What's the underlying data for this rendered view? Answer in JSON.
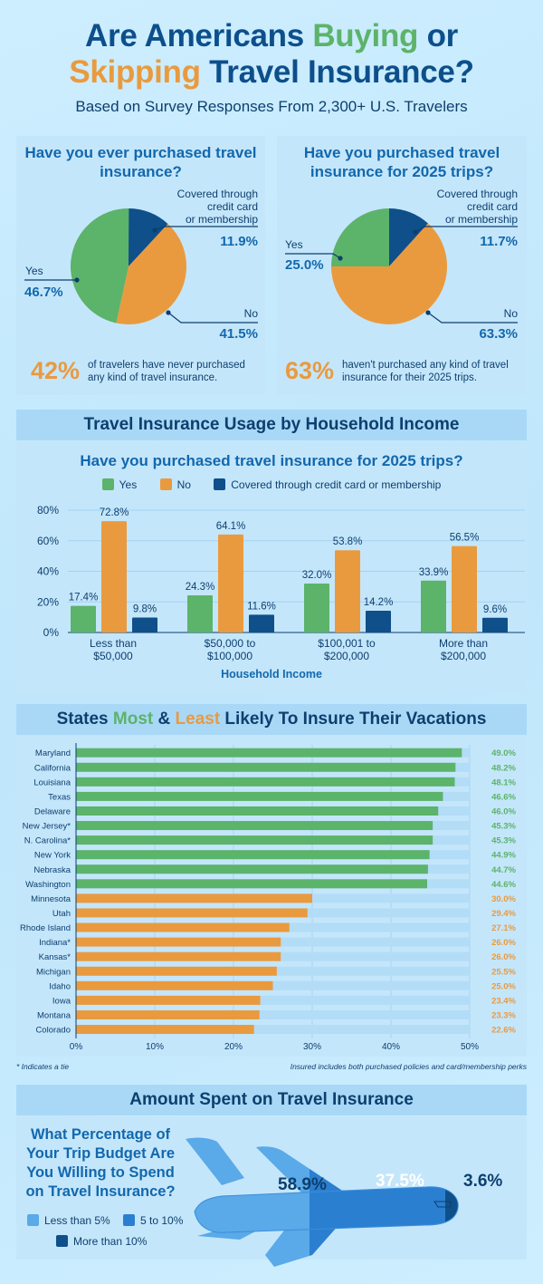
{
  "header": {
    "title_line1_a": "Are Americans ",
    "title_line1_b": "Buying",
    "title_line1_c": " or",
    "title_line2_a": "Skipping",
    "title_line2_b": " Travel Insurance?",
    "subtitle": "Based on Survey Responses From 2,300+ U.S. Travelers"
  },
  "colors": {
    "yes": "#5cb36a",
    "no": "#ea9a3e",
    "covered": "#0f4f8a",
    "navy": "#0d4f8b"
  },
  "chart_data": [
    {
      "type": "pie",
      "title": "Have you ever purchased travel insurance?",
      "slices": [
        {
          "label": "Covered through credit card or membership",
          "value": 11.9,
          "text": "11.9%"
        },
        {
          "label": "No",
          "value": 41.5,
          "text": "41.5%"
        },
        {
          "label": "Yes",
          "value": 46.7,
          "text": "46.7%"
        }
      ],
      "callout": {
        "big": "42%",
        "text": "of travelers have never purchased any kind of travel insurance."
      }
    },
    {
      "type": "pie",
      "title": "Have you purchased travel insurance for 2025 trips?",
      "slices": [
        {
          "label": "Covered through credit card or membership",
          "value": 11.7,
          "text": "11.7%"
        },
        {
          "label": "No",
          "value": 63.3,
          "text": "63.3%"
        },
        {
          "label": "Yes",
          "value": 25.0,
          "text": "25.0%"
        }
      ],
      "callout": {
        "big": "63%",
        "text": "haven't purchased any kind of travel insurance for their 2025 trips."
      }
    },
    {
      "type": "bar",
      "section": "Travel Insurance Usage by Household Income",
      "title": "Have you purchased travel insurance for 2025 trips?",
      "legend": [
        "Yes",
        "No",
        "Covered through credit card or membership"
      ],
      "categories": [
        [
          "Less than",
          "$50,000"
        ],
        [
          "$50,000 to",
          "$100,000"
        ],
        [
          "$100,001 to",
          "$200,000"
        ],
        [
          "More than",
          "$200,000"
        ]
      ],
      "series": [
        {
          "name": "Yes",
          "values": [
            17.4,
            24.3,
            32.0,
            33.9
          ]
        },
        {
          "name": "No",
          "values": [
            72.8,
            64.1,
            53.8,
            56.5
          ]
        },
        {
          "name": "Covered through credit card or membership",
          "values": [
            9.8,
            11.6,
            14.2,
            9.6
          ]
        }
      ],
      "xlabel": "Household Income",
      "ylim": [
        0,
        80
      ],
      "yticks": [
        "0%",
        "20%",
        "40%",
        "60%",
        "80%"
      ]
    },
    {
      "type": "bar",
      "orientation": "horizontal",
      "section_a": "States ",
      "section_b": "Most",
      "section_c": " & ",
      "section_d": "Least",
      "section_e": " Likely To Insure Their Vacations",
      "categories": [
        "Maryland",
        "California",
        "Louisiana",
        "Texas",
        "Delaware",
        "New Jersey*",
        "N. Carolina*",
        "New York",
        "Nebraska",
        "Washington",
        "Minnesota",
        "Utah",
        "Rhode Island",
        "Indiana*",
        "Kansas*",
        "Michigan",
        "Idaho",
        "Iowa",
        "Montana",
        "Colorado"
      ],
      "values": [
        49.0,
        48.2,
        48.1,
        46.6,
        46.0,
        45.3,
        45.3,
        44.9,
        44.7,
        44.6,
        30.0,
        29.4,
        27.1,
        26.0,
        26.0,
        25.5,
        25.0,
        23.4,
        23.3,
        22.6
      ],
      "groups": [
        "most",
        "most",
        "most",
        "most",
        "most",
        "most",
        "most",
        "most",
        "most",
        "most",
        "least",
        "least",
        "least",
        "least",
        "least",
        "least",
        "least",
        "least",
        "least",
        "least"
      ],
      "xlim": [
        0,
        50
      ],
      "xticks": [
        "0%",
        "10%",
        "20%",
        "30%",
        "40%",
        "50%"
      ],
      "footnote_left": "* Indicates a tie",
      "footnote_right": "Insured includes both purchased policies and card/membership perks"
    },
    {
      "type": "bar",
      "orientation": "stacked",
      "section": "Amount Spent on Travel Insurance",
      "title_lines": [
        "What Percentage of",
        "Your Trip Budget Are",
        "You Willing to Spend",
        "on Travel Insurance?"
      ],
      "segments": [
        {
          "label": "Less than 5%",
          "value": 58.9,
          "text": "58.9%",
          "color": "#5aa9e8"
        },
        {
          "label": "5 to 10%",
          "value": 37.5,
          "text": "37.5%",
          "color": "#2b7fd0"
        },
        {
          "label": "More than 10%",
          "value": 3.6,
          "text": "3.6%",
          "color": "#0f4f8a"
        }
      ]
    }
  ],
  "pie_labels": {
    "covered_l1": "Covered through",
    "covered_l2": "credit card",
    "covered_l3": "or membership",
    "yes": "Yes",
    "no": "No"
  }
}
